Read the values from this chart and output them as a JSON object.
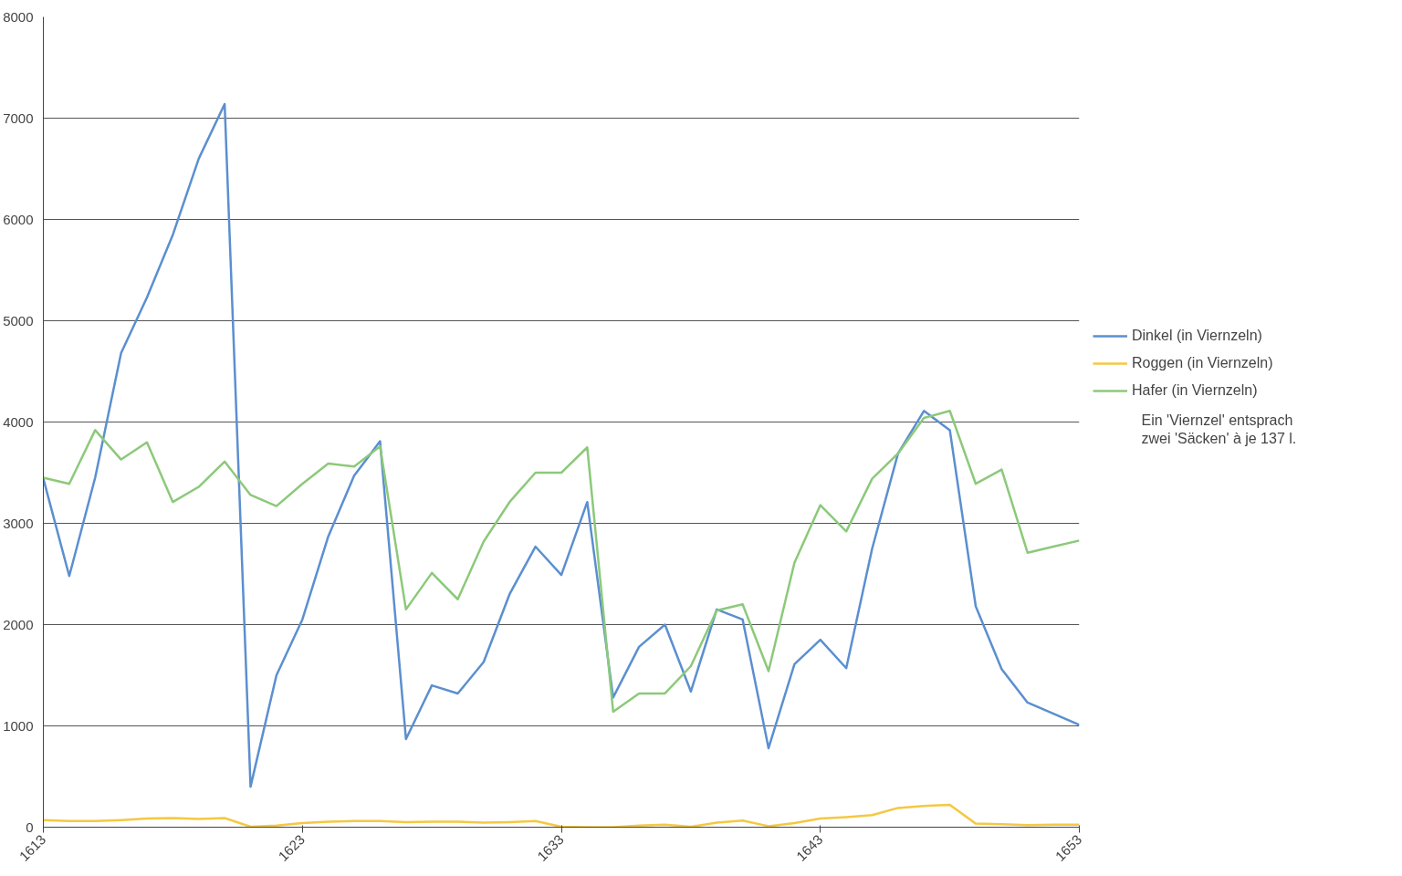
{
  "chart_data": {
    "type": "line",
    "x": [
      1613,
      1614,
      1615,
      1616,
      1617,
      1618,
      1619,
      1620,
      1621,
      1622,
      1623,
      1624,
      1625,
      1626,
      1627,
      1628,
      1629,
      1630,
      1631,
      1632,
      1633,
      1634,
      1635,
      1636,
      1637,
      1638,
      1639,
      1640,
      1641,
      1642,
      1643,
      1644,
      1645,
      1646,
      1647,
      1648,
      1649,
      1650,
      1651,
      1652,
      1653
    ],
    "series": [
      {
        "name": "Dinkel (in Viernzeln)",
        "color": "#5b8fd0",
        "values": [
          3440,
          2480,
          3450,
          4680,
          5230,
          5850,
          6600,
          7140,
          400,
          1500,
          2050,
          2870,
          3470,
          3810,
          870,
          1400,
          1320,
          1630,
          2300,
          2770,
          2490,
          3210,
          1280,
          1780,
          2000,
          1340,
          2150,
          2050,
          780,
          1610,
          1850,
          1570,
          2750,
          3690,
          4110,
          3920,
          2180,
          1560,
          1230,
          1120,
          1010
        ]
      },
      {
        "name": "Roggen (in Viernzeln)",
        "color": "#f5c842",
        "values": [
          70,
          60,
          60,
          70,
          85,
          90,
          80,
          90,
          5,
          15,
          40,
          55,
          60,
          60,
          50,
          55,
          55,
          45,
          50,
          60,
          5,
          0,
          0,
          15,
          25,
          5,
          45,
          65,
          10,
          40,
          85,
          100,
          120,
          190,
          210,
          220,
          35,
          30,
          20,
          25,
          25
        ]
      },
      {
        "name": "Hafer (in Viernzeln)",
        "color": "#8cc97a",
        "values": [
          3450,
          3390,
          3920,
          3630,
          3800,
          3210,
          3360,
          3610,
          3280,
          3170,
          3390,
          3590,
          3560,
          3760,
          2150,
          2510,
          2250,
          2820,
          3210,
          3500,
          3500,
          3750,
          1140,
          1320,
          1320,
          1590,
          2140,
          2200,
          1540,
          2610,
          3180,
          2920,
          3440,
          3690,
          4040,
          4110,
          3390,
          3530,
          2710,
          2770,
          2830
        ]
      }
    ],
    "xlim": [
      1613,
      1653
    ],
    "xticks": [
      1613,
      1623,
      1633,
      1643,
      1653
    ],
    "ylim": [
      0,
      8000
    ],
    "yticks": [
      0,
      1000,
      2000,
      3000,
      4000,
      5000,
      6000,
      7000,
      8000
    ],
    "grid": "y",
    "legend": "right",
    "marker": "none",
    "line_style": "solid",
    "annotations": [
      "Ein 'Viernzel' entsprach\nzwei 'Säcken' à je 137 l."
    ]
  }
}
